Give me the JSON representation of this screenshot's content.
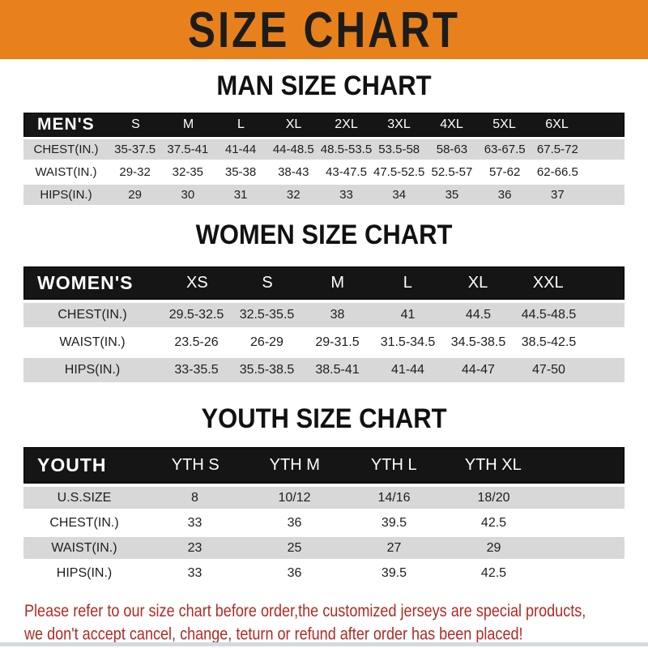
{
  "banner": {
    "title": "SIZE CHART"
  },
  "sections": [
    {
      "heading": "MAN SIZE CHART",
      "table": {
        "label": "MEN'S",
        "columns": [
          "S",
          "M",
          "L",
          "XL",
          "2XL",
          "3XL",
          "4XL",
          "5XL",
          "6XL"
        ],
        "rows": [
          {
            "label": "CHEST(IN.)",
            "values": [
              "35-37.5",
              "37.5-41",
              "41-44",
              "44-48.5",
              "48.5-53.5",
              "53.5-58",
              "58-63",
              "63-67.5",
              "67.5-72"
            ]
          },
          {
            "label": "WAIST(IN.)",
            "values": [
              "29-32",
              "32-35",
              "35-38",
              "38-43",
              "43-47.5",
              "47.5-52.5",
              "52.5-57",
              "57-62",
              "62-66.5"
            ]
          },
          {
            "label": "HIPS(IN.)",
            "values": [
              "29",
              "30",
              "31",
              "32",
              "33",
              "34",
              "35",
              "36",
              "37"
            ]
          }
        ]
      }
    },
    {
      "heading": "WOMEN SIZE CHART",
      "table": {
        "label": "WOMEN'S",
        "columns": [
          "XS",
          "S",
          "M",
          "L",
          "XL",
          "XXL"
        ],
        "rows": [
          {
            "label": "CHEST(IN.)",
            "values": [
              "29.5-32.5",
              "32.5-35.5",
              "38",
              "41",
              "44.5",
              "44.5-48.5"
            ]
          },
          {
            "label": "WAIST(IN.)",
            "values": [
              "23.5-26",
              "26-29",
              "29-31.5",
              "31.5-34.5",
              "34.5-38.5",
              "38.5-42.5"
            ]
          },
          {
            "label": "HIPS(IN.)",
            "values": [
              "33-35.5",
              "35.5-38.5",
              "38.5-41",
              "41-44",
              "44-47",
              "47-50"
            ]
          }
        ]
      }
    },
    {
      "heading": "YOUTH SIZE CHART",
      "table": {
        "label": "YOUTH",
        "columns": [
          "YTH S",
          "YTH M",
          "YTH L",
          "YTH XL"
        ],
        "rows": [
          {
            "label": "U.S.SIZE",
            "values": [
              "8",
              "10/12",
              "14/16",
              "18/20"
            ]
          },
          {
            "label": "CHEST(IN.)",
            "values": [
              "33",
              "36",
              "39.5",
              "42.5"
            ]
          },
          {
            "label": "WAIST(IN.)",
            "values": [
              "23",
              "25",
              "27",
              "29"
            ]
          },
          {
            "label": "HIPS(IN.)",
            "values": [
              "33",
              "36",
              "39.5",
              "42.5"
            ]
          }
        ]
      }
    }
  ],
  "footer": {
    "lines": [
      "Please refer to our size chart before order,the customized jerseys are special products,",
      "we don't accept cancel, change, teturn or refund after order has been placed!"
    ]
  },
  "colors": {
    "banner_bg": "#E8811B",
    "bar_bg": "#151515",
    "row_alt_bg": "#D8D8D8",
    "footer_text": "#B22A24"
  }
}
